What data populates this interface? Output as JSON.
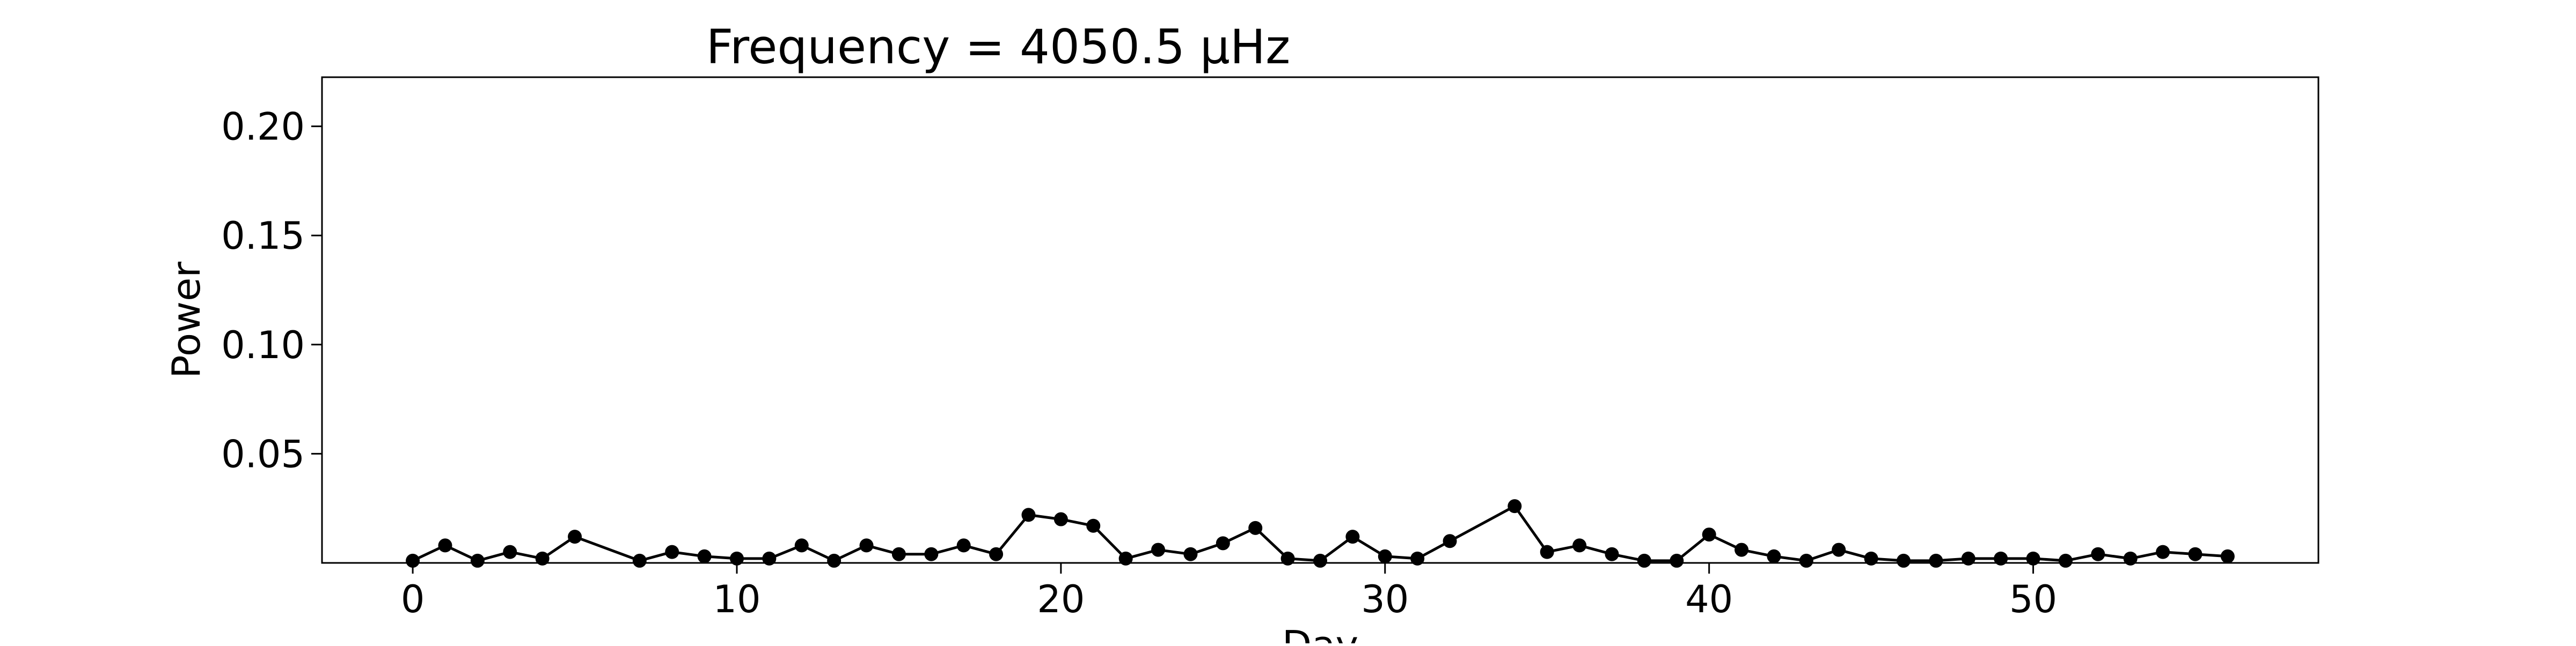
{
  "chart_data": {
    "type": "line",
    "title": "Frequency = 4050.5 μHz",
    "xlabel": "Day",
    "ylabel": "Power",
    "xlim": [
      -2.8,
      58.8
    ],
    "ylim": [
      0,
      0.2225
    ],
    "xticks": [
      0,
      10,
      20,
      30,
      40,
      50
    ],
    "yticks": [
      0.05,
      0.1,
      0.15,
      0.2
    ],
    "ytick_labels": [
      "0.05",
      "0.10",
      "0.15",
      "0.20"
    ],
    "grid": false,
    "legend": "none",
    "series": [
      {
        "color": "#000000",
        "marker": "circle",
        "x": [
          0,
          1,
          2,
          3,
          4,
          5,
          7,
          8,
          9,
          10,
          11,
          12,
          13,
          14,
          15,
          16,
          17,
          18,
          19,
          20,
          21,
          22,
          23,
          24,
          25,
          26,
          27,
          28,
          29,
          30,
          31,
          32,
          34,
          35,
          36,
          37,
          38,
          39,
          40,
          41,
          42,
          43,
          44,
          45,
          46,
          47,
          48,
          49,
          50,
          51,
          52,
          53,
          54,
          55,
          56
        ],
        "y": [
          0.001,
          0.008,
          0.001,
          0.005,
          0.002,
          0.012,
          0.001,
          0.005,
          0.003,
          0.002,
          0.002,
          0.008,
          0.001,
          0.008,
          0.004,
          0.004,
          0.008,
          0.004,
          0.022,
          0.02,
          0.017,
          0.002,
          0.006,
          0.004,
          0.009,
          0.016,
          0.002,
          0.001,
          0.012,
          0.003,
          0.002,
          0.01,
          0.026,
          0.005,
          0.008,
          0.004,
          0.001,
          0.001,
          0.013,
          0.006,
          0.003,
          0.001,
          0.006,
          0.002,
          0.001,
          0.001,
          0.002,
          0.002,
          0.002,
          0.001,
          0.004,
          0.002,
          0.005,
          0.004,
          0.003
        ]
      }
    ]
  }
}
